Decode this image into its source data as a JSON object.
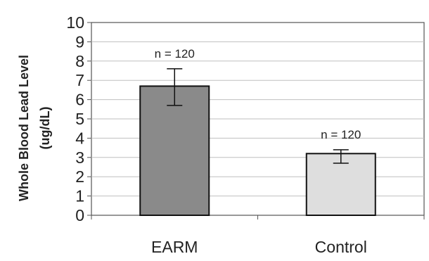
{
  "chart_data": {
    "type": "bar",
    "ylabel_line1": "Whole Blood Lead Level",
    "ylabel_line2": "(ug/dL)",
    "xlabel": "",
    "ylim": [
      0,
      10
    ],
    "yticks": [
      "0",
      "1",
      "2",
      "3",
      "4",
      "5",
      "6",
      "7",
      "8",
      "9",
      "10"
    ],
    "grid": true,
    "categories": [
      "EARM",
      "Control"
    ],
    "values": [
      6.7,
      3.2
    ],
    "error_low": [
      5.7,
      2.7
    ],
    "error_high": [
      7.6,
      3.4
    ],
    "annotations": [
      "n = 120",
      "n = 120"
    ],
    "bar_colors": [
      "#8a8a8a",
      "#dedede"
    ]
  }
}
